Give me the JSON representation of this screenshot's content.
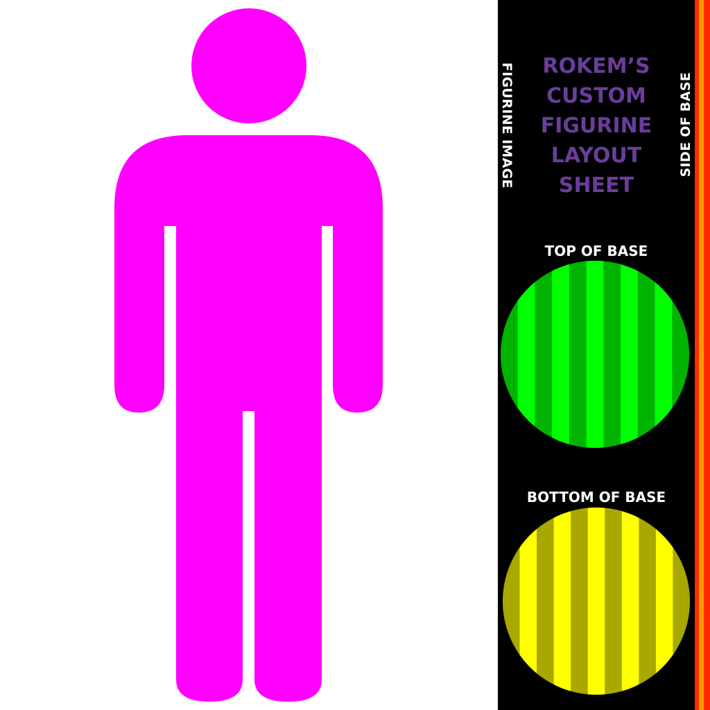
{
  "figurine": {
    "color": "#ff00ff",
    "icon": "person-silhouette-icon",
    "label": "FIGURINE IMAGE"
  },
  "sheet": {
    "title_lines": [
      "ROKEM’S",
      "CUSTOM",
      "FIGURINE",
      "LAYOUT",
      "SHEET"
    ],
    "title_color": "#6a3d9a",
    "side_label": "SIDE OF BASE",
    "side_colors": [
      "#ff2a00",
      "#ff9a00",
      "#ff2a00"
    ]
  },
  "top_base": {
    "label": "TOP OF BASE",
    "stripe_colors": [
      "#00b300",
      "#00ff00"
    ]
  },
  "bottom_base": {
    "label": "BOTTOM OF BASE",
    "stripe_colors": [
      "#a8a800",
      "#ffff00"
    ]
  }
}
